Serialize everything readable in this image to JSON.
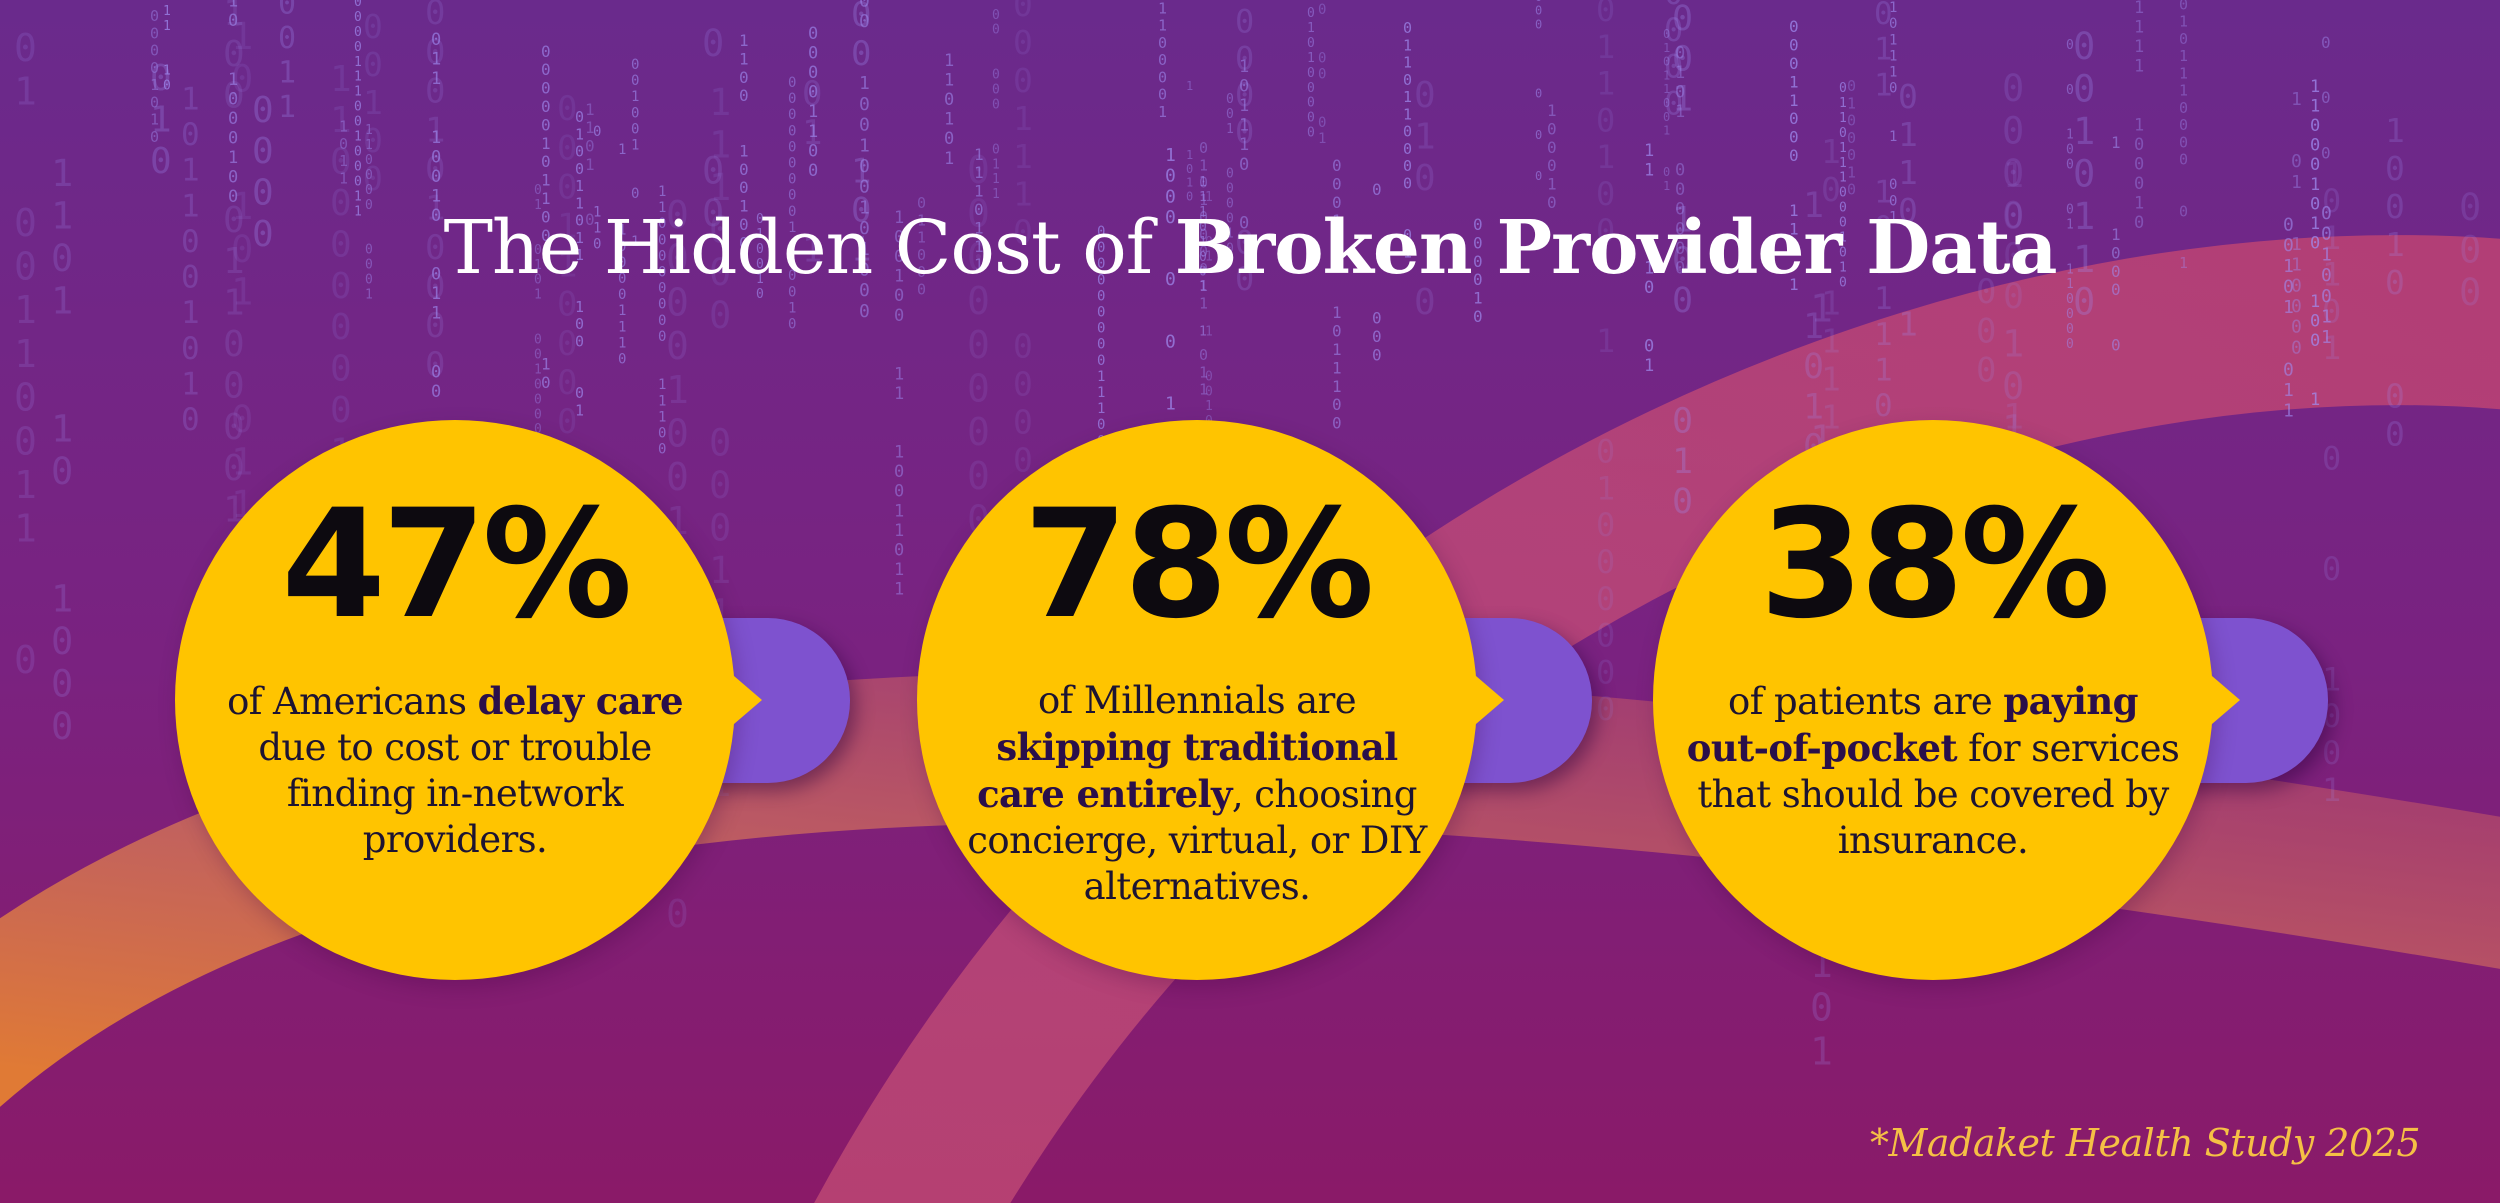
{
  "title": {
    "regular": "The Hidden Cost of ",
    "bold": "Broken Provider Data"
  },
  "stats": [
    {
      "value": "47%",
      "parts": [
        {
          "t": "of Americans ",
          "b": false
        },
        {
          "t": "delay care",
          "b": true
        },
        {
          "t": " due to cost or trouble finding in-network providers.",
          "b": false
        }
      ]
    },
    {
      "value": "78%",
      "parts": [
        {
          "t": "of Millennials are ",
          "b": false
        },
        {
          "t": "skipping traditional care entirely",
          "b": true
        },
        {
          "t": ", choosing concierge, virtual, or DIY alternatives.",
          "b": false
        }
      ]
    },
    {
      "value": "38%",
      "parts": [
        {
          "t": "of patients are ",
          "b": false
        },
        {
          "t": "paying out-of-pocket",
          "b": true
        },
        {
          "t": " for services that should be covered by insurance.",
          "b": false
        }
      ]
    }
  ],
  "footnote": "*Madaket Health Study 2025",
  "colors": {
    "background_top": "#6a2a8c",
    "background_bottom": "#7a1a6a",
    "circle": "#ffc400",
    "connector_tab": "#7e52cf",
    "binary_digits": "#9f8cf0",
    "footnote": "#f5c045"
  }
}
